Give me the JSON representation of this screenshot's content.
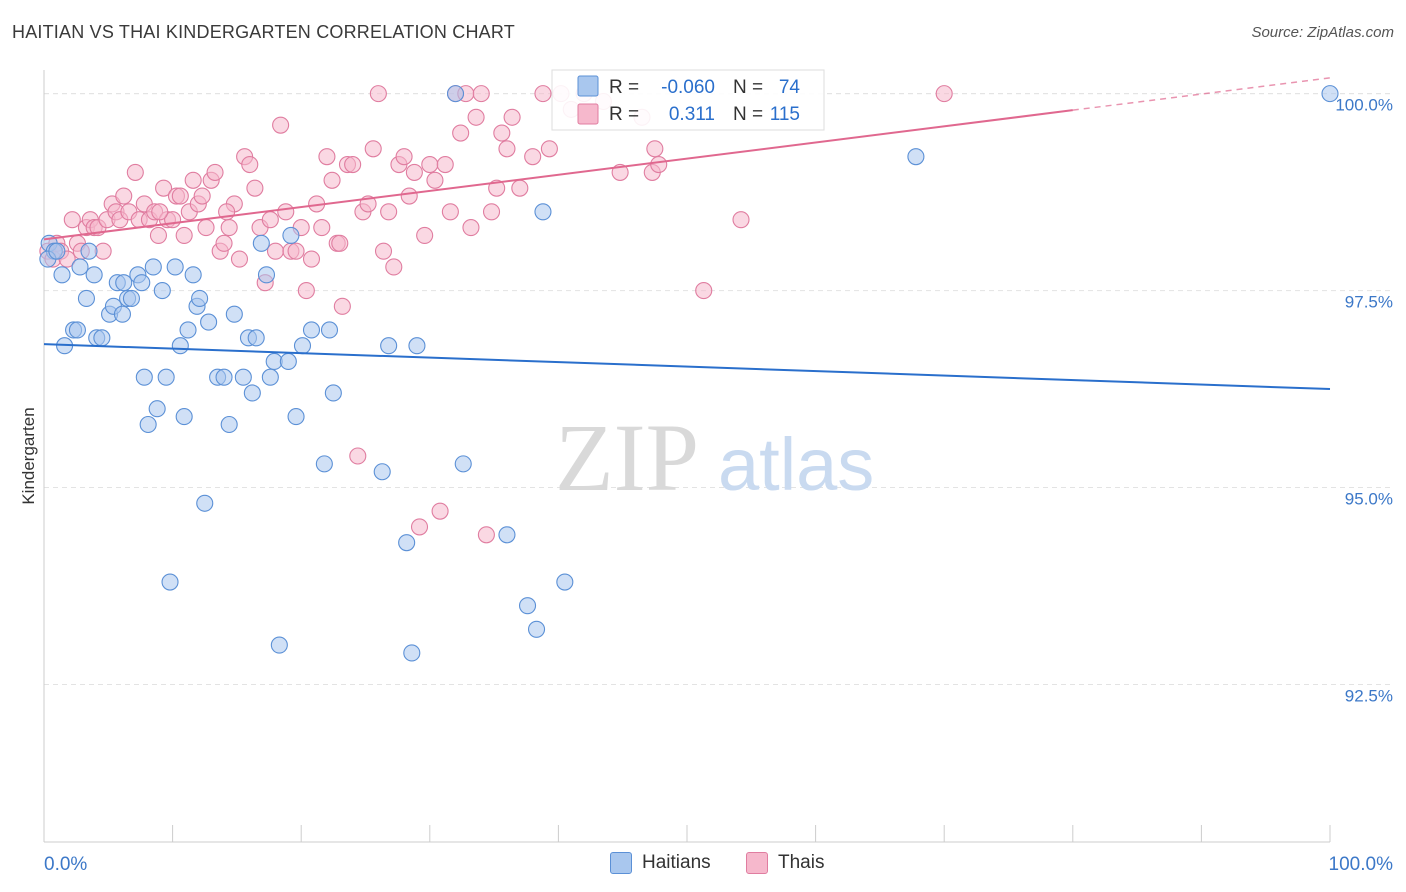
{
  "header": {
    "title": "HAITIAN VS THAI KINDERGARTEN CORRELATION CHART",
    "source": "Source: ZipAtlas.com"
  },
  "watermark": {
    "zip": "ZIP",
    "atlas": "atlas"
  },
  "colors": {
    "haitians_fill": "#a9c7ee",
    "haitians_stroke": "#5b90d6",
    "haitians_line": "#2a6fcc",
    "thais_fill": "#f6b8cc",
    "thais_stroke": "#e07da0",
    "thais_line": "#e0688f",
    "axis_text": "#3c78c8"
  },
  "legend": {
    "rows": [
      {
        "r_label": "R =",
        "r_value": "-0.060",
        "n_label": "N =",
        "n_value": "74"
      },
      {
        "r_label": "R =",
        "r_value": "0.311",
        "n_label": "N =",
        "n_value": "115"
      }
    ]
  },
  "chart_data": {
    "type": "scatter",
    "xlabel": "",
    "ylabel": "Kindergarten",
    "xlim": [
      0,
      100
    ],
    "ylim": [
      90.5,
      100.3
    ],
    "x_tick_labels": [
      "0.0%",
      "100.0%"
    ],
    "y_ticks": [
      92.5,
      95.0,
      97.5,
      100.0
    ],
    "y_tick_labels": [
      "92.5%",
      "95.0%",
      "97.5%",
      "100.0%"
    ],
    "grid": true,
    "legend_position": "bottom",
    "series": [
      {
        "name": "Haitians",
        "trend": {
          "x": [
            0,
            100
          ],
          "y": [
            96.82,
            96.25
          ]
        },
        "points": [
          [
            0.4,
            98.1
          ],
          [
            0.8,
            98.0
          ],
          [
            1.4,
            97.7
          ],
          [
            1.6,
            96.8
          ],
          [
            2.3,
            97.0
          ],
          [
            2.6,
            97.0
          ],
          [
            2.8,
            97.8
          ],
          [
            3.3,
            97.4
          ],
          [
            3.5,
            98.0
          ],
          [
            3.9,
            97.7
          ],
          [
            4.1,
            96.9
          ],
          [
            4.5,
            96.9
          ],
          [
            5.1,
            97.2
          ],
          [
            5.4,
            97.3
          ],
          [
            5.7,
            97.6
          ],
          [
            6.1,
            97.2
          ],
          [
            6.2,
            97.6
          ],
          [
            6.5,
            97.4
          ],
          [
            6.8,
            97.4
          ],
          [
            7.3,
            97.7
          ],
          [
            7.6,
            97.6
          ],
          [
            7.8,
            96.4
          ],
          [
            8.1,
            95.8
          ],
          [
            8.5,
            97.8
          ],
          [
            8.8,
            96.0
          ],
          [
            9.2,
            97.5
          ],
          [
            9.5,
            96.4
          ],
          [
            9.8,
            93.8
          ],
          [
            10.2,
            97.8
          ],
          [
            10.6,
            96.8
          ],
          [
            10.9,
            95.9
          ],
          [
            11.2,
            97.0
          ],
          [
            11.6,
            97.7
          ],
          [
            11.9,
            97.3
          ],
          [
            12.1,
            97.4
          ],
          [
            12.8,
            97.1
          ],
          [
            12.5,
            94.8
          ],
          [
            13.5,
            96.4
          ],
          [
            14.0,
            96.4
          ],
          [
            14.4,
            95.8
          ],
          [
            14.8,
            97.2
          ],
          [
            15.5,
            96.4
          ],
          [
            15.9,
            96.9
          ],
          [
            16.2,
            96.2
          ],
          [
            16.5,
            96.9
          ],
          [
            16.9,
            98.1
          ],
          [
            17.3,
            97.7
          ],
          [
            17.6,
            96.4
          ],
          [
            17.9,
            96.6
          ],
          [
            18.3,
            93.0
          ],
          [
            19.0,
            96.6
          ],
          [
            19.2,
            98.2
          ],
          [
            19.6,
            95.9
          ],
          [
            20.1,
            96.8
          ],
          [
            20.8,
            97.0
          ],
          [
            21.8,
            95.3
          ],
          [
            22.2,
            97.0
          ],
          [
            22.5,
            96.2
          ],
          [
            26.3,
            95.2
          ],
          [
            26.8,
            96.8
          ],
          [
            28.2,
            94.3
          ],
          [
            28.6,
            92.9
          ],
          [
            29.0,
            96.8
          ],
          [
            32.0,
            100.0
          ],
          [
            32.6,
            95.3
          ],
          [
            36.0,
            94.4
          ],
          [
            37.6,
            93.5
          ],
          [
            38.3,
            93.2
          ],
          [
            38.8,
            98.5
          ],
          [
            40.5,
            93.8
          ],
          [
            67.8,
            99.2
          ],
          [
            100.0,
            100.0
          ],
          [
            0.3,
            97.9
          ],
          [
            1.0,
            98.0
          ]
        ]
      },
      {
        "name": "Thais",
        "trend": {
          "x": [
            0,
            100
          ],
          "y": [
            98.15,
            100.2
          ]
        },
        "points": [
          [
            0.3,
            98.0
          ],
          [
            0.7,
            97.9
          ],
          [
            1.0,
            98.1
          ],
          [
            1.3,
            98.0
          ],
          [
            1.8,
            97.9
          ],
          [
            2.2,
            98.4
          ],
          [
            2.6,
            98.1
          ],
          [
            2.9,
            98.0
          ],
          [
            3.3,
            98.3
          ],
          [
            3.6,
            98.4
          ],
          [
            3.9,
            98.3
          ],
          [
            4.2,
            98.3
          ],
          [
            4.6,
            98.0
          ],
          [
            4.9,
            98.4
          ],
          [
            5.3,
            98.6
          ],
          [
            5.6,
            98.5
          ],
          [
            5.9,
            98.4
          ],
          [
            6.2,
            98.7
          ],
          [
            6.6,
            98.5
          ],
          [
            7.1,
            99.0
          ],
          [
            7.4,
            98.4
          ],
          [
            7.8,
            98.6
          ],
          [
            8.2,
            98.4
          ],
          [
            8.6,
            98.5
          ],
          [
            8.9,
            98.2
          ],
          [
            9.3,
            98.8
          ],
          [
            9.6,
            98.4
          ],
          [
            10.0,
            98.4
          ],
          [
            10.3,
            98.7
          ],
          [
            10.6,
            98.7
          ],
          [
            10.9,
            98.2
          ],
          [
            11.3,
            98.5
          ],
          [
            11.6,
            98.9
          ],
          [
            12.0,
            98.6
          ],
          [
            12.3,
            98.7
          ],
          [
            12.6,
            98.3
          ],
          [
            13.0,
            98.9
          ],
          [
            13.3,
            99.0
          ],
          [
            13.7,
            98.0
          ],
          [
            14.0,
            98.1
          ],
          [
            14.4,
            98.3
          ],
          [
            14.8,
            98.6
          ],
          [
            15.2,
            97.9
          ],
          [
            15.6,
            99.2
          ],
          [
            16.0,
            99.1
          ],
          [
            16.4,
            98.8
          ],
          [
            16.8,
            98.3
          ],
          [
            17.2,
            97.6
          ],
          [
            17.6,
            98.4
          ],
          [
            18.0,
            98.0
          ],
          [
            18.4,
            99.6
          ],
          [
            18.8,
            98.5
          ],
          [
            19.2,
            98.0
          ],
          [
            19.6,
            98.0
          ],
          [
            20.0,
            98.3
          ],
          [
            20.4,
            97.5
          ],
          [
            20.8,
            97.9
          ],
          [
            21.2,
            98.6
          ],
          [
            21.6,
            98.3
          ],
          [
            22.0,
            99.2
          ],
          [
            22.4,
            98.9
          ],
          [
            22.8,
            98.1
          ],
          [
            23.2,
            97.3
          ],
          [
            23.6,
            99.1
          ],
          [
            24.0,
            99.1
          ],
          [
            24.4,
            95.4
          ],
          [
            24.8,
            98.5
          ],
          [
            25.2,
            98.6
          ],
          [
            25.6,
            99.3
          ],
          [
            26.0,
            100.0
          ],
          [
            26.4,
            98.0
          ],
          [
            26.8,
            98.5
          ],
          [
            27.2,
            97.8
          ],
          [
            27.6,
            99.1
          ],
          [
            28.0,
            99.2
          ],
          [
            28.4,
            98.7
          ],
          [
            28.8,
            99.0
          ],
          [
            29.2,
            94.5
          ],
          [
            29.6,
            98.2
          ],
          [
            30.0,
            99.1
          ],
          [
            30.4,
            98.9
          ],
          [
            30.8,
            94.7
          ],
          [
            31.2,
            99.1
          ],
          [
            31.6,
            98.5
          ],
          [
            32.0,
            100.0
          ],
          [
            32.4,
            99.5
          ],
          [
            32.8,
            100.0
          ],
          [
            33.2,
            98.3
          ],
          [
            33.6,
            99.7
          ],
          [
            34.0,
            100.0
          ],
          [
            34.4,
            94.4
          ],
          [
            34.8,
            98.5
          ],
          [
            35.2,
            98.8
          ],
          [
            35.6,
            99.5
          ],
          [
            36.0,
            99.3
          ],
          [
            36.4,
            99.7
          ],
          [
            37.0,
            98.8
          ],
          [
            38.0,
            99.2
          ],
          [
            38.8,
            100.0
          ],
          [
            39.3,
            99.3
          ],
          [
            40.2,
            100.0
          ],
          [
            41.0,
            99.8
          ],
          [
            42.0,
            100.0
          ],
          [
            43.5,
            99.9
          ],
          [
            44.8,
            99.0
          ],
          [
            46.5,
            99.7
          ],
          [
            47.3,
            99.0
          ],
          [
            47.5,
            99.3
          ],
          [
            47.8,
            99.1
          ],
          [
            51.3,
            97.5
          ],
          [
            54.2,
            98.4
          ],
          [
            70.0,
            100.0
          ],
          [
            14.2,
            98.5
          ],
          [
            23.0,
            98.1
          ],
          [
            9.0,
            98.5
          ]
        ]
      }
    ]
  }
}
